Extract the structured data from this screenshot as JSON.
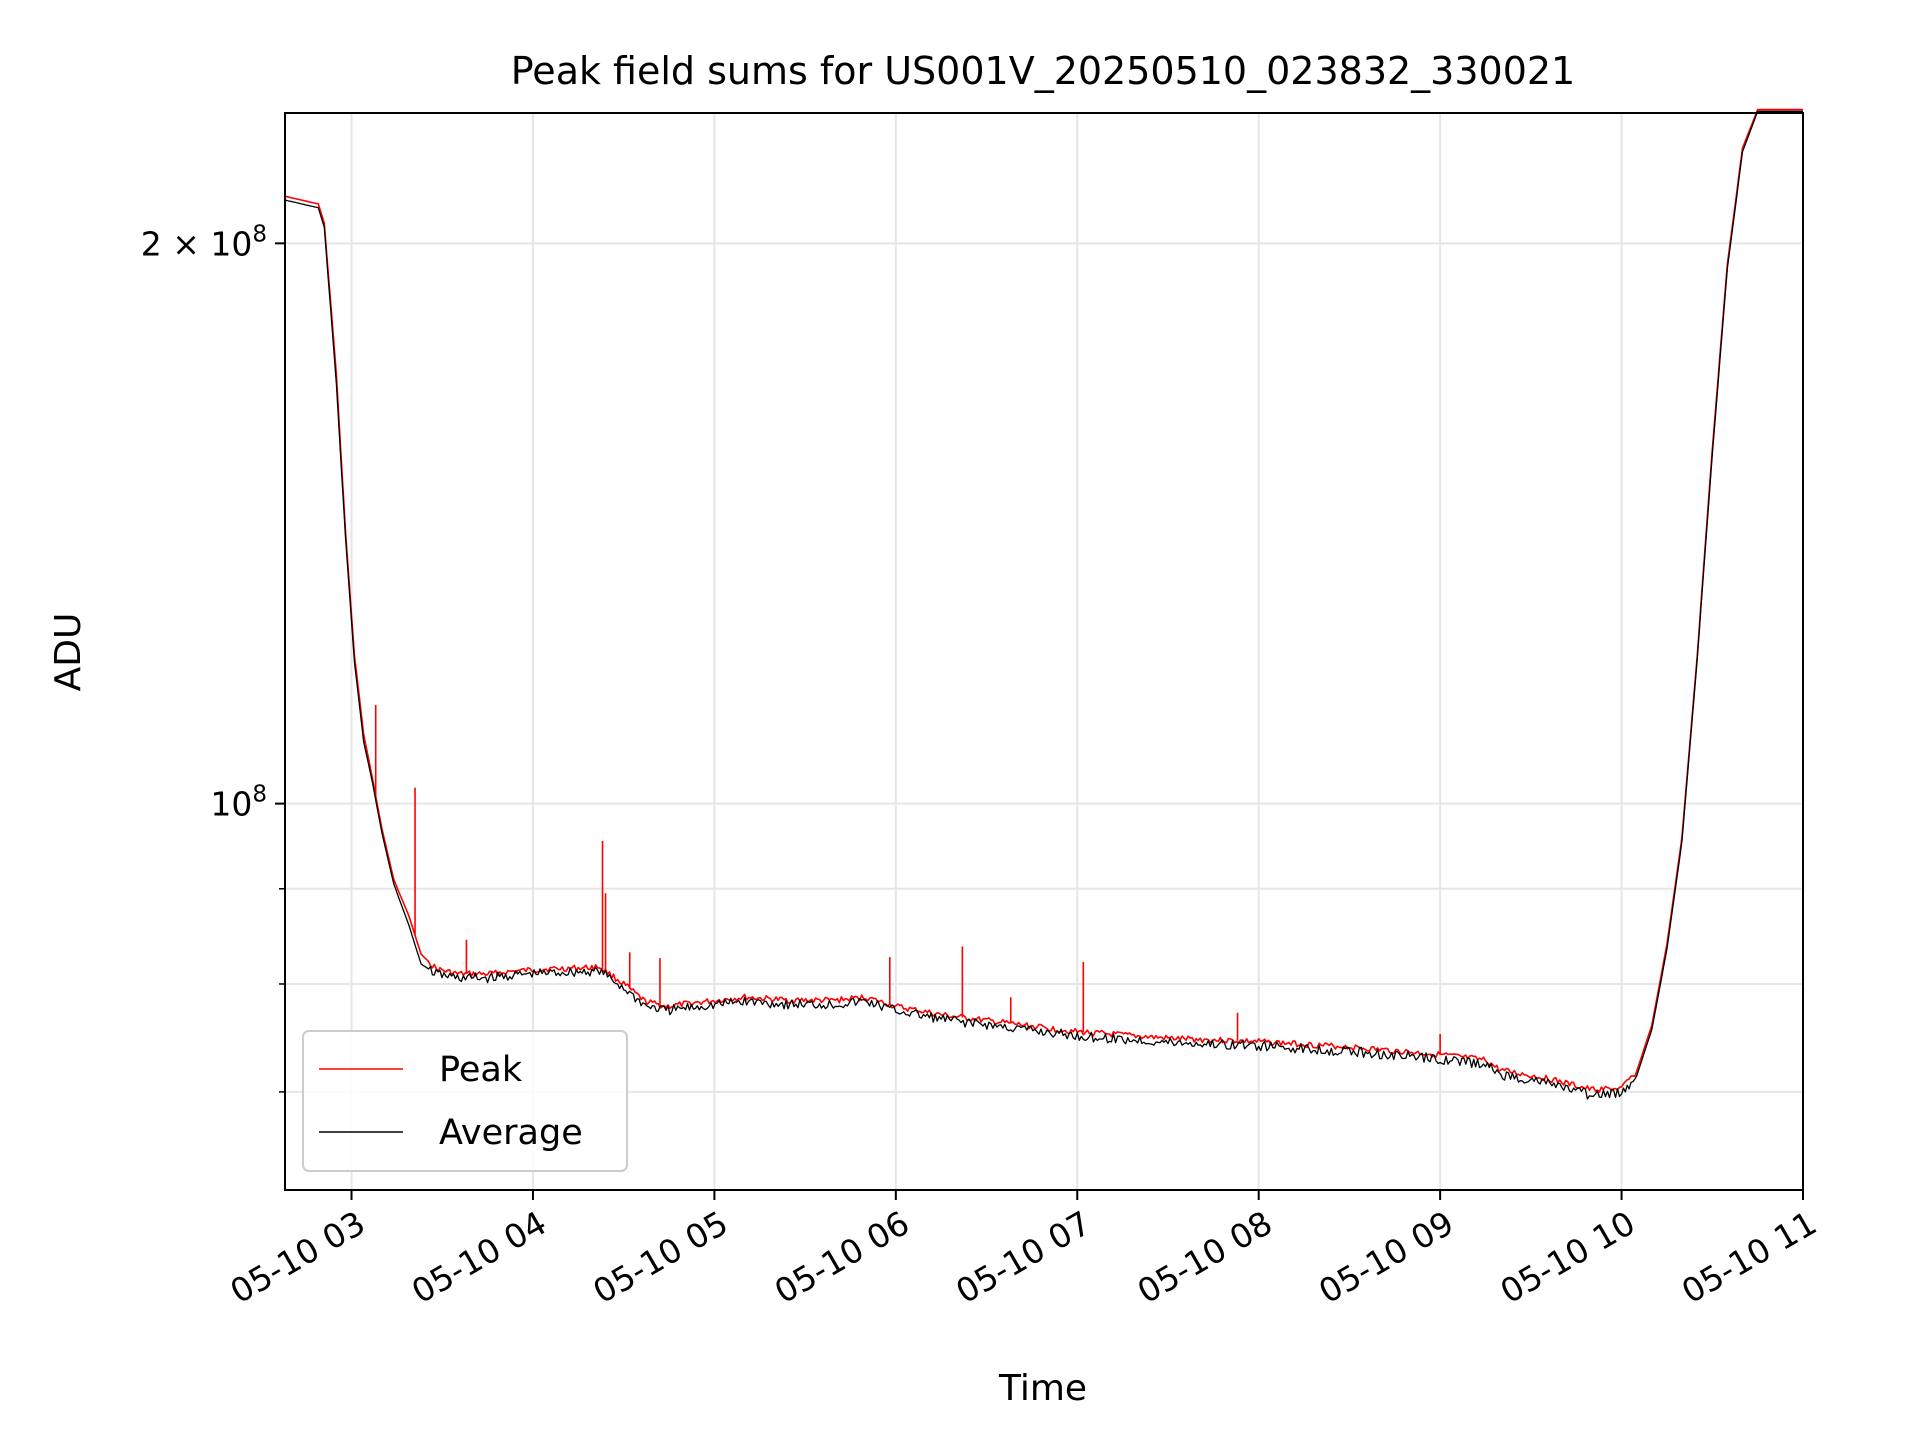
{
  "chart_data": {
    "type": "line",
    "title": "Peak field sums for US001V_20250510_023832_330021",
    "xlabel": "Time",
    "ylabel": "ADU",
    "xscale": "time",
    "yscale": "log",
    "xlim": [
      "2025-05-10 02:38",
      "2025-05-10 11:00"
    ],
    "ylim": [
      62000000,
      235000000
    ],
    "grid": true,
    "legend_position": "lower-left",
    "x_ticks": [
      {
        "t": "2025-05-10 03:00",
        "label": "05-10 03"
      },
      {
        "t": "2025-05-10 04:00",
        "label": "05-10 04"
      },
      {
        "t": "2025-05-10 05:00",
        "label": "05-10 05"
      },
      {
        "t": "2025-05-10 06:00",
        "label": "05-10 06"
      },
      {
        "t": "2025-05-10 07:00",
        "label": "05-10 07"
      },
      {
        "t": "2025-05-10 08:00",
        "label": "05-10 08"
      },
      {
        "t": "2025-05-10 09:00",
        "label": "05-10 09"
      },
      {
        "t": "2025-05-10 10:00",
        "label": "05-10 10"
      },
      {
        "t": "2025-05-10 11:00",
        "label": "05-10 11"
      }
    ],
    "y_major_ticks": [
      {
        "value": 100000000,
        "base": "10",
        "exp": "8",
        "coef": ""
      },
      {
        "value": 200000000,
        "base": "10",
        "exp": "8",
        "coef": "2 × "
      }
    ],
    "y_minor_ticks": [
      70000000,
      80000000,
      90000000
    ],
    "series": [
      {
        "name": "Peak",
        "color": "#ff0000",
        "points": [
          [
            "2025-05-10 02:38",
            212000000
          ],
          [
            "2025-05-10 02:49",
            210000000
          ],
          [
            "2025-05-10 02:51",
            205000000
          ],
          [
            "2025-05-10 02:55",
            170000000
          ],
          [
            "2025-05-10 02:58",
            140000000
          ],
          [
            "2025-05-10 03:01",
            120000000
          ],
          [
            "2025-05-10 03:04",
            109000000
          ],
          [
            "2025-05-10 03:07",
            103000000
          ],
          [
            "2025-05-10 03:10",
            97000000
          ],
          [
            "2025-05-10 03:14",
            91000000
          ],
          [
            "2025-05-10 03:19",
            87000000
          ],
          [
            "2025-05-10 03:23",
            83000000
          ],
          [
            "2025-05-10 03:28",
            81500000
          ],
          [
            "2025-05-10 03:35",
            81000000
          ],
          [
            "2025-05-10 03:45",
            81000000
          ],
          [
            "2025-05-10 03:55",
            81300000
          ],
          [
            "2025-05-10 04:05",
            81500000
          ],
          [
            "2025-05-10 04:15",
            81600000
          ],
          [
            "2025-05-10 04:22",
            81700000
          ],
          [
            "2025-05-10 04:30",
            80000000
          ],
          [
            "2025-05-10 04:37",
            78300000
          ],
          [
            "2025-05-10 04:44",
            77800000
          ],
          [
            "2025-05-10 04:55",
            78200000
          ],
          [
            "2025-05-10 05:10",
            78700000
          ],
          [
            "2025-05-10 05:25",
            78400000
          ],
          [
            "2025-05-10 05:40",
            78400000
          ],
          [
            "2025-05-10 05:50",
            78700000
          ],
          [
            "2025-05-10 06:00",
            77800000
          ],
          [
            "2025-05-10 06:15",
            77000000
          ],
          [
            "2025-05-10 06:40",
            76100000
          ],
          [
            "2025-05-10 07:00",
            75400000
          ],
          [
            "2025-05-10 07:30",
            74800000
          ],
          [
            "2025-05-10 08:00",
            74500000
          ],
          [
            "2025-05-10 08:30",
            74000000
          ],
          [
            "2025-05-10 09:00",
            73300000
          ],
          [
            "2025-05-10 09:15",
            72800000
          ],
          [
            "2025-05-10 09:20",
            71900000
          ],
          [
            "2025-05-10 09:35",
            71200000
          ],
          [
            "2025-05-10 09:50",
            70200000
          ],
          [
            "2025-05-10 10:00",
            70300000
          ],
          [
            "2025-05-10 10:05",
            71800000
          ],
          [
            "2025-05-10 10:10",
            76000000
          ],
          [
            "2025-05-10 10:15",
            84000000
          ],
          [
            "2025-05-10 10:20",
            96000000
          ],
          [
            "2025-05-10 10:25",
            120000000
          ],
          [
            "2025-05-10 10:30",
            155000000
          ],
          [
            "2025-05-10 10:35",
            195000000
          ],
          [
            "2025-05-10 10:40",
            225000000
          ],
          [
            "2025-05-10 10:45",
            236000000
          ],
          [
            "2025-05-10 11:00",
            236000000
          ]
        ],
        "spikes": [
          [
            "2025-05-10 03:08",
            113000000
          ],
          [
            "2025-05-10 03:21",
            102000000
          ],
          [
            "2025-05-10 03:38",
            84500000
          ],
          [
            "2025-05-10 04:23",
            95500000
          ],
          [
            "2025-05-10 04:24",
            89500000
          ],
          [
            "2025-05-10 04:32",
            83200000
          ],
          [
            "2025-05-10 04:42",
            82600000
          ],
          [
            "2025-05-10 05:58",
            82700000
          ],
          [
            "2025-05-10 06:22",
            83800000
          ],
          [
            "2025-05-10 06:38",
            78700000
          ],
          [
            "2025-05-10 07:02",
            82200000
          ],
          [
            "2025-05-10 07:53",
            77200000
          ],
          [
            "2025-05-10 09:00",
            75200000
          ]
        ]
      },
      {
        "name": "Average",
        "color": "#000000",
        "points": [
          [
            "2025-05-10 02:38",
            211000000
          ],
          [
            "2025-05-10 02:49",
            209000000
          ],
          [
            "2025-05-10 02:51",
            204000000
          ],
          [
            "2025-05-10 02:55",
            168000000
          ],
          [
            "2025-05-10 02:58",
            139000000
          ],
          [
            "2025-05-10 03:01",
            119000000
          ],
          [
            "2025-05-10 03:04",
            108000000
          ],
          [
            "2025-05-10 03:07",
            102500000
          ],
          [
            "2025-05-10 03:10",
            96500000
          ],
          [
            "2025-05-10 03:14",
            90500000
          ],
          [
            "2025-05-10 03:19",
            86000000
          ],
          [
            "2025-05-10 03:23",
            82000000
          ],
          [
            "2025-05-10 03:28",
            81000000
          ],
          [
            "2025-05-10 03:35",
            80600000
          ],
          [
            "2025-05-10 03:45",
            80600000
          ],
          [
            "2025-05-10 03:55",
            80900000
          ],
          [
            "2025-05-10 04:05",
            81100000
          ],
          [
            "2025-05-10 04:15",
            81200000
          ],
          [
            "2025-05-10 04:22",
            81300000
          ],
          [
            "2025-05-10 04:30",
            79600000
          ],
          [
            "2025-05-10 04:37",
            77900000
          ],
          [
            "2025-05-10 04:44",
            77400000
          ],
          [
            "2025-05-10 04:55",
            77800000
          ],
          [
            "2025-05-10 05:10",
            78300000
          ],
          [
            "2025-05-10 05:25",
            78000000
          ],
          [
            "2025-05-10 05:40",
            78000000
          ],
          [
            "2025-05-10 05:50",
            78300000
          ],
          [
            "2025-05-10 06:00",
            77400000
          ],
          [
            "2025-05-10 06:15",
            76600000
          ],
          [
            "2025-05-10 06:40",
            75700000
          ],
          [
            "2025-05-10 07:00",
            75000000
          ],
          [
            "2025-05-10 07:30",
            74400000
          ],
          [
            "2025-05-10 08:00",
            74100000
          ],
          [
            "2025-05-10 08:30",
            73600000
          ],
          [
            "2025-05-10 09:00",
            72900000
          ],
          [
            "2025-05-10 09:15",
            72400000
          ],
          [
            "2025-05-10 09:20",
            71500000
          ],
          [
            "2025-05-10 09:35",
            70800000
          ],
          [
            "2025-05-10 09:50",
            69700000
          ],
          [
            "2025-05-10 10:00",
            69900000
          ],
          [
            "2025-05-10 10:05",
            71400000
          ],
          [
            "2025-05-10 10:10",
            75600000
          ],
          [
            "2025-05-10 10:15",
            83500000
          ],
          [
            "2025-05-10 10:20",
            95500000
          ],
          [
            "2025-05-10 10:25",
            119500000
          ],
          [
            "2025-05-10 10:30",
            154000000
          ],
          [
            "2025-05-10 10:35",
            194000000
          ],
          [
            "2025-05-10 10:40",
            224000000
          ],
          [
            "2025-05-10 10:45",
            235500000
          ],
          [
            "2025-05-10 11:00",
            235500000
          ]
        ]
      }
    ]
  }
}
